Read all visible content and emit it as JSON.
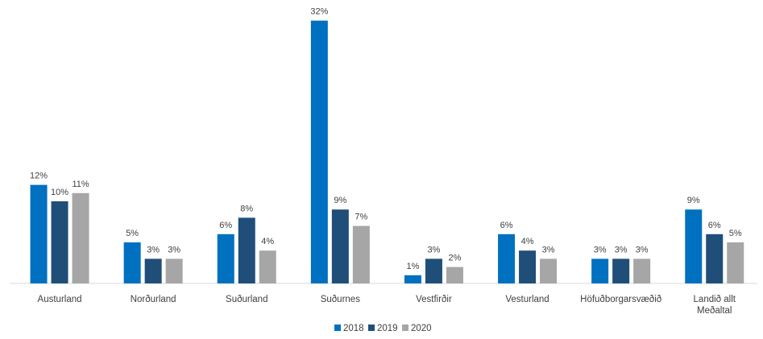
{
  "chart_data": {
    "type": "bar",
    "categories": [
      [
        "Austurland"
      ],
      [
        "Norðurland"
      ],
      [
        "Suðurland"
      ],
      [
        "Suðurnes"
      ],
      [
        "Vestfirðir"
      ],
      [
        "Vesturland"
      ],
      [
        "Höfuðborgarsvæðið"
      ],
      [
        "Landið allt",
        "Meðaltal"
      ]
    ],
    "series": [
      {
        "name": "2018",
        "color": "#0070C0",
        "values": [
          12,
          5,
          6,
          32,
          1,
          6,
          3,
          9
        ]
      },
      {
        "name": "2019",
        "color": "#1F4E79",
        "values": [
          10,
          3,
          8,
          9,
          3,
          4,
          3,
          6
        ]
      },
      {
        "name": "2020",
        "color": "#A6A6A6",
        "values": [
          11,
          3,
          4,
          7,
          2,
          3,
          3,
          5
        ]
      }
    ],
    "value_suffix": "%",
    "ylim": [
      0,
      33
    ],
    "grid": false,
    "legend_position": "bottom"
  }
}
